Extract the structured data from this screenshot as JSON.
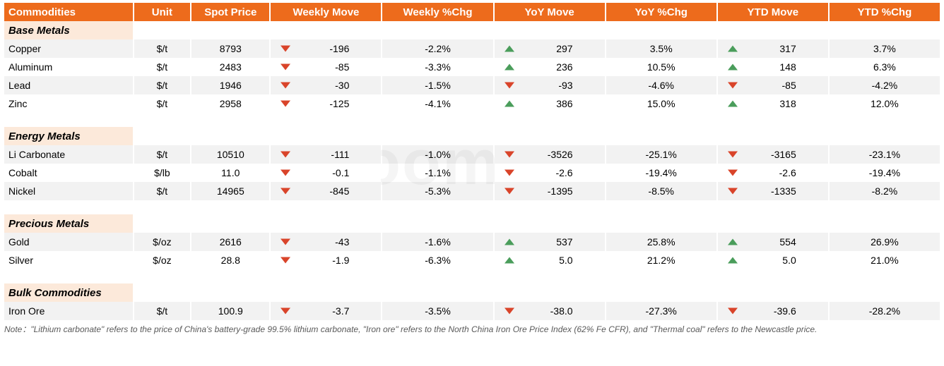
{
  "columns": [
    "Commodities",
    "Unit",
    "Spot Price",
    "Weekly Move",
    "Weekly %Chg",
    "YoY Move",
    "YoY  %Chg",
    "YTD Move",
    "YTD %Chg"
  ],
  "watermark": "moomoo",
  "sections": [
    {
      "title": "Base Metals",
      "rows": [
        {
          "name": "Copper",
          "unit": "$/t",
          "spot": "8793",
          "wm": "-196",
          "wd": "down",
          "wp": "-2.2%",
          "ym": "297",
          "yd": "up",
          "yp": "3.5%",
          "dm": "317",
          "dd": "up",
          "dp": "3.7%"
        },
        {
          "name": "Aluminum",
          "unit": "$/t",
          "spot": "2483",
          "wm": "-85",
          "wd": "down",
          "wp": "-3.3%",
          "ym": "236",
          "yd": "up",
          "yp": "10.5%",
          "dm": "148",
          "dd": "up",
          "dp": "6.3%"
        },
        {
          "name": "Lead",
          "unit": "$/t",
          "spot": "1946",
          "wm": "-30",
          "wd": "down",
          "wp": "-1.5%",
          "ym": "-93",
          "yd": "down",
          "yp": "-4.6%",
          "dm": "-85",
          "dd": "down",
          "dp": "-4.2%"
        },
        {
          "name": "Zinc",
          "unit": "$/t",
          "spot": "2958",
          "wm": "-125",
          "wd": "down",
          "wp": "-4.1%",
          "ym": "386",
          "yd": "up",
          "yp": "15.0%",
          "dm": "318",
          "dd": "up",
          "dp": "12.0%"
        }
      ]
    },
    {
      "title": "Energy Metals",
      "rows": [
        {
          "name": "Li Carbonate",
          "unit": "$/t",
          "spot": "10510",
          "wm": "-111",
          "wd": "down",
          "wp": "-1.0%",
          "ym": "-3526",
          "yd": "down",
          "yp": "-25.1%",
          "dm": "-3165",
          "dd": "down",
          "dp": "-23.1%"
        },
        {
          "name": "Cobalt",
          "unit": "$/lb",
          "spot": "11.0",
          "wm": "-0.1",
          "wd": "down",
          "wp": "-1.1%",
          "ym": "-2.6",
          "yd": "down",
          "yp": "-19.4%",
          "dm": "-2.6",
          "dd": "down",
          "dp": "-19.4%"
        },
        {
          "name": "Nickel",
          "unit": "$/t",
          "spot": "14965",
          "wm": "-845",
          "wd": "down",
          "wp": "-5.3%",
          "ym": "-1395",
          "yd": "down",
          "yp": "-8.5%",
          "dm": "-1335",
          "dd": "down",
          "dp": "-8.2%"
        }
      ]
    },
    {
      "title": "Precious Metals",
      "rows": [
        {
          "name": "Gold",
          "unit": "$/oz",
          "spot": "2616",
          "wm": "-43",
          "wd": "down",
          "wp": "-1.6%",
          "ym": "537",
          "yd": "up",
          "yp": "25.8%",
          "dm": "554",
          "dd": "up",
          "dp": "26.9%"
        },
        {
          "name": "Silver",
          "unit": "$/oz",
          "spot": "28.8",
          "wm": "-1.9",
          "wd": "down",
          "wp": "-6.3%",
          "ym": "5.0",
          "yd": "up",
          "yp": "21.2%",
          "dm": "5.0",
          "dd": "up",
          "dp": "21.0%"
        }
      ]
    },
    {
      "title": "Bulk Commodities",
      "rows": [
        {
          "name": "Iron Ore",
          "unit": "$/t",
          "spot": "100.9",
          "wm": "-3.7",
          "wd": "down",
          "wp": "-3.5%",
          "ym": "-38.0",
          "yd": "down",
          "yp": "-27.3%",
          "dm": "-39.6",
          "dd": "down",
          "dp": "-28.2%"
        }
      ]
    }
  ],
  "note": "Note：\"Lithium carbonate\" refers to the price of China's battery-grade 99.5% lithium carbonate, \"Iron ore\" refers to the North China Iron Ore Price Index (62% Fe CFR), and \"Thermal coal\" refers to the Newcastle price.",
  "colors": {
    "header_bg": "#ed6b1c",
    "section_bg": "#fce9da",
    "row_alt_bg": "#f2f2f2",
    "up_arrow": "#4a9d5b",
    "down_arrow": "#d9442a"
  }
}
